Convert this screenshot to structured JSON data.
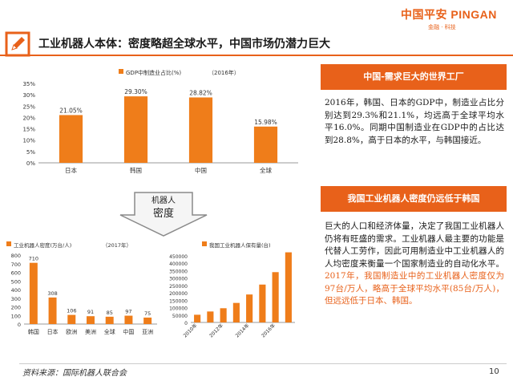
{
  "logo": {
    "main": "中国平安 PINGAN",
    "sub": "金融 · 科技"
  },
  "title": "工业机器人本体：密度略超全球水平，中国市场仍潜力巨大",
  "arrow_label": {
    "line1": "机器人",
    "line2": "密度"
  },
  "right": {
    "banner1": "中国-需求巨大的世界工厂",
    "para1": "2016年，韩国、日本的GDP中，制造业占比分别达到29.3%和21.1%，均远高于全球平均水平16.0%。同期中国制造业在GDP中的占比达到28.8%，高于日本的水平，与韩国接近。",
    "banner2": "我国工业机器人密度仍远低于韩国",
    "para2_normal": "巨大的人口和经济体量，决定了我国工业机器人仍将有旺盛的需求。工业机器人最主要的功能是代替人工劳作，因此可用制造业中工业机器人的人均密度来衡量一个国家制造业的自动化水平。",
    "para2_highlight": "2017年，我国制造业中的工业机器人密度仅为97台/万人，略高于全球平均水平(85台/万人)， 但远远低于日本、韩国。"
  },
  "footnote": "资料来源：国际机器人联合会",
  "page_number": "10",
  "colors": {
    "accent": "#e8611a",
    "bar": "#ef7d1a"
  },
  "chart_data": [
    {
      "type": "bar",
      "legend": "GDP中制造业占比(%)",
      "annotation": "（2016年）",
      "categories": [
        "日本",
        "韩国",
        "中国",
        "全球"
      ],
      "values": [
        21.05,
        29.3,
        28.82,
        15.98
      ],
      "labels": [
        "21.05%",
        "29.30%",
        "28.82%",
        "15.98%"
      ],
      "yticks": [
        "0%",
        "5%",
        "10%",
        "15%",
        "20%",
        "25%",
        "30%",
        "35%"
      ],
      "ylim": [
        0,
        35
      ]
    },
    {
      "type": "bar",
      "legend": "工业机器人密度(万台/人)",
      "annotation": "（2017年）",
      "categories": [
        "韩国",
        "日本",
        "欧洲",
        "美洲",
        "全球",
        "中国",
        "亚洲"
      ],
      "values": [
        710,
        308,
        106,
        91,
        85,
        97,
        75
      ],
      "labels": [
        "710",
        "308",
        "106",
        "91",
        "85",
        "97",
        "75"
      ],
      "yticks": [
        "0",
        "100",
        "200",
        "300",
        "400",
        "500",
        "600",
        "700",
        "800"
      ],
      "ylim": [
        0,
        800
      ]
    },
    {
      "type": "bar",
      "legend": "我国工业机器人保有量(台)",
      "categories": [
        "2010年",
        "",
        "2012年",
        "",
        "2014年",
        "",
        "2016年",
        ""
      ],
      "values": [
        52000,
        74000,
        96000,
        132000,
        189000,
        256000,
        340000,
        474000
      ],
      "yticks": [
        "0",
        "50000",
        "100000",
        "150000",
        "200000",
        "250000",
        "300000",
        "350000",
        "400000",
        "450000"
      ],
      "ylim": [
        0,
        450000
      ]
    }
  ]
}
